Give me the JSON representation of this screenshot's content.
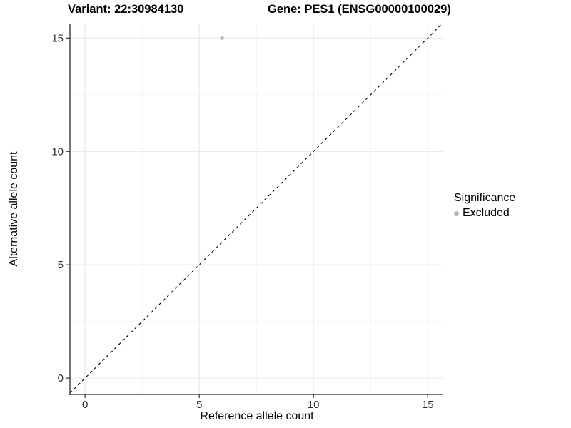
{
  "titles": {
    "variant": "Variant: 22:30984130",
    "gene": "Gene: PES1 (ENSG00000100029)"
  },
  "chart_data": {
    "type": "scatter",
    "xlabel": "Reference allele count",
    "ylabel": "Alternative allele count",
    "xlim": [
      -0.66,
      15.68
    ],
    "ylim": [
      -0.72,
      15.64
    ],
    "xticks": [
      0,
      5,
      10,
      15
    ],
    "yticks": [
      0,
      5,
      10,
      15
    ],
    "xminor": [
      2.5,
      7.5,
      12.5
    ],
    "yminor": [
      2.5,
      7.5,
      12.5
    ],
    "grid": true,
    "points": [
      {
        "x": 6,
        "y": 15,
        "series": "Excluded"
      }
    ],
    "abline": {
      "slope": 1,
      "intercept": 0,
      "style": "dashed",
      "color": "#000000"
    },
    "legend": {
      "title": "Significance",
      "position": "right",
      "entries": [
        {
          "label": "Excluded",
          "color": "#b8b8b8",
          "marker": "circle"
        }
      ]
    },
    "colors": {
      "point": "#b8b8b8",
      "grid_major": "#e8e8e8",
      "grid_minor": "#f2f2f2",
      "axis_line": "#474747",
      "tick_mark": "#333333",
      "tick_label": "#2e2e2e",
      "text": "#000000"
    }
  }
}
